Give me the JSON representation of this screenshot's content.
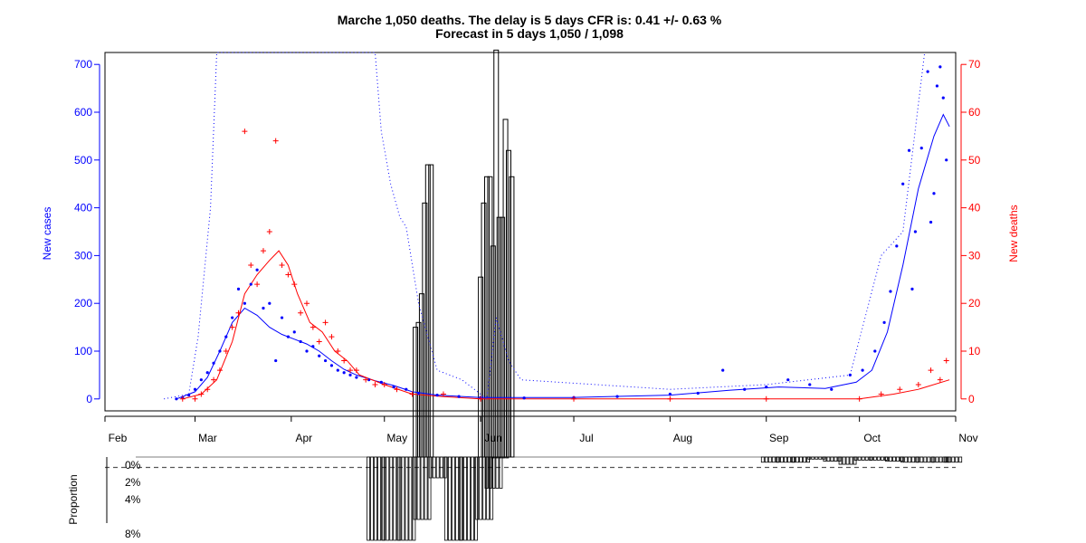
{
  "chart_data": [
    {
      "type": "line",
      "title": "Marche 1,050 deaths. The delay is 5 days CFR is: 0.41 +/- 0.63 %",
      "subtitle": "Forecast in 5 days 1,050 / 1,098",
      "ylabel": "New cases",
      "y2label": "New deaths",
      "x_ticks": [
        "Feb",
        "Mar",
        "Apr",
        "May",
        "Jun",
        "Jul",
        "Aug",
        "Sep",
        "Oct",
        "Nov"
      ],
      "y_ticks": [
        "0",
        "100",
        "200",
        "300",
        "400",
        "500",
        "600",
        "700"
      ],
      "y2_ticks": [
        "0",
        "10",
        "20",
        "30",
        "40",
        "50",
        "60",
        "70"
      ],
      "xlim": [
        "2020-02-01",
        "2020-11-01"
      ],
      "ylim": [
        -25,
        725
      ],
      "y2lim": [
        -2.5,
        72.5
      ],
      "colors": {
        "cases": "#0000ff",
        "deaths": "#ff0000",
        "bars": "#000000"
      },
      "series": [
        {
          "name": "New cases",
          "axis": "left",
          "color": "#0000ff",
          "points": [
            [
              "2020-02-24",
              0
            ],
            [
              "2020-02-26",
              3
            ],
            [
              "2020-02-28",
              8
            ],
            [
              "2020-03-01",
              20
            ],
            [
              "2020-03-03",
              40
            ],
            [
              "2020-03-05",
              55
            ],
            [
              "2020-03-07",
              75
            ],
            [
              "2020-03-09",
              100
            ],
            [
              "2020-03-11",
              130
            ],
            [
              "2020-03-13",
              170
            ],
            [
              "2020-03-15",
              230
            ],
            [
              "2020-03-17",
              200
            ],
            [
              "2020-03-19",
              240
            ],
            [
              "2020-03-21",
              270
            ],
            [
              "2020-03-23",
              190
            ],
            [
              "2020-03-25",
              200
            ],
            [
              "2020-03-27",
              80
            ],
            [
              "2020-03-29",
              170
            ],
            [
              "2020-03-31",
              130
            ],
            [
              "2020-04-02",
              140
            ],
            [
              "2020-04-04",
              120
            ],
            [
              "2020-04-06",
              100
            ],
            [
              "2020-04-08",
              110
            ],
            [
              "2020-04-10",
              90
            ],
            [
              "2020-04-12",
              80
            ],
            [
              "2020-04-14",
              70
            ],
            [
              "2020-04-16",
              60
            ],
            [
              "2020-04-18",
              55
            ],
            [
              "2020-04-20",
              50
            ],
            [
              "2020-04-22",
              45
            ],
            [
              "2020-04-26",
              40
            ],
            [
              "2020-04-30",
              35
            ],
            [
              "2020-05-04",
              25
            ],
            [
              "2020-05-08",
              20
            ],
            [
              "2020-05-12",
              12
            ],
            [
              "2020-05-18",
              8
            ],
            [
              "2020-05-25",
              5
            ],
            [
              "2020-06-01",
              3
            ],
            [
              "2020-06-15",
              2
            ],
            [
              "2020-07-01",
              3
            ],
            [
              "2020-07-15",
              5
            ],
            [
              "2020-08-01",
              10
            ],
            [
              "2020-08-10",
              12
            ],
            [
              "2020-08-18",
              60
            ],
            [
              "2020-08-25",
              20
            ],
            [
              "2020-09-01",
              25
            ],
            [
              "2020-09-08",
              40
            ],
            [
              "2020-09-15",
              30
            ],
            [
              "2020-09-22",
              20
            ],
            [
              "2020-09-28",
              50
            ],
            [
              "2020-10-02",
              60
            ],
            [
              "2020-10-06",
              100
            ],
            [
              "2020-10-09",
              160
            ],
            [
              "2020-10-11",
              225
            ],
            [
              "2020-10-13",
              320
            ],
            [
              "2020-10-15",
              450
            ],
            [
              "2020-10-17",
              520
            ],
            [
              "2020-10-18",
              230
            ],
            [
              "2020-10-19",
              350
            ],
            [
              "2020-10-21",
              525
            ],
            [
              "2020-10-23",
              685
            ],
            [
              "2020-10-24",
              370
            ],
            [
              "2020-10-25",
              430
            ],
            [
              "2020-10-26",
              655
            ],
            [
              "2020-10-27",
              695
            ],
            [
              "2020-10-28",
              630
            ],
            [
              "2020-10-29",
              500
            ]
          ]
        },
        {
          "name": "New deaths",
          "axis": "right",
          "color": "#ff0000",
          "points": [
            [
              "2020-02-26",
              0
            ],
            [
              "2020-03-01",
              0
            ],
            [
              "2020-03-03",
              1
            ],
            [
              "2020-03-05",
              2
            ],
            [
              "2020-03-07",
              4
            ],
            [
              "2020-03-09",
              6
            ],
            [
              "2020-03-11",
              10
            ],
            [
              "2020-03-13",
              15
            ],
            [
              "2020-03-15",
              18
            ],
            [
              "2020-03-17",
              56
            ],
            [
              "2020-03-19",
              28
            ],
            [
              "2020-03-21",
              24
            ],
            [
              "2020-03-23",
              31
            ],
            [
              "2020-03-25",
              35
            ],
            [
              "2020-03-27",
              54
            ],
            [
              "2020-03-29",
              28
            ],
            [
              "2020-03-31",
              26
            ],
            [
              "2020-04-02",
              24
            ],
            [
              "2020-04-04",
              18
            ],
            [
              "2020-04-06",
              20
            ],
            [
              "2020-04-08",
              15
            ],
            [
              "2020-04-10",
              12
            ],
            [
              "2020-04-12",
              16
            ],
            [
              "2020-04-14",
              13
            ],
            [
              "2020-04-16",
              10
            ],
            [
              "2020-04-18",
              8
            ],
            [
              "2020-04-20",
              6
            ],
            [
              "2020-04-22",
              6
            ],
            [
              "2020-04-25",
              4
            ],
            [
              "2020-04-28",
              3
            ],
            [
              "2020-05-01",
              3
            ],
            [
              "2020-05-05",
              2
            ],
            [
              "2020-05-10",
              1
            ],
            [
              "2020-05-20",
              1
            ],
            [
              "2020-06-01",
              0
            ],
            [
              "2020-07-01",
              0
            ],
            [
              "2020-08-01",
              0
            ],
            [
              "2020-09-01",
              0
            ],
            [
              "2020-10-01",
              0
            ],
            [
              "2020-10-08",
              1
            ],
            [
              "2020-10-14",
              2
            ],
            [
              "2020-10-20",
              3
            ],
            [
              "2020-10-24",
              6
            ],
            [
              "2020-10-27",
              4
            ],
            [
              "2020-10-29",
              8
            ]
          ]
        },
        {
          "name": "New cases smoothed",
          "axis": "left",
          "color": "#0000ff",
          "points": [
            [
              "2020-02-24",
              0
            ],
            [
              "2020-03-01",
              15
            ],
            [
              "2020-03-05",
              45
            ],
            [
              "2020-03-09",
              100
            ],
            [
              "2020-03-13",
              160
            ],
            [
              "2020-03-17",
              190
            ],
            [
              "2020-03-21",
              175
            ],
            [
              "2020-03-25",
              150
            ],
            [
              "2020-03-29",
              135
            ],
            [
              "2020-04-02",
              125
            ],
            [
              "2020-04-06",
              115
            ],
            [
              "2020-04-10",
              100
            ],
            [
              "2020-04-14",
              80
            ],
            [
              "2020-04-18",
              62
            ],
            [
              "2020-04-22",
              50
            ],
            [
              "2020-04-28",
              38
            ],
            [
              "2020-05-04",
              28
            ],
            [
              "2020-05-10",
              15
            ],
            [
              "2020-05-18",
              8
            ],
            [
              "2020-06-01",
              3
            ],
            [
              "2020-07-01",
              3
            ],
            [
              "2020-08-01",
              8
            ],
            [
              "2020-08-20",
              18
            ],
            [
              "2020-09-05",
              25
            ],
            [
              "2020-09-20",
              22
            ],
            [
              "2020-09-30",
              35
            ],
            [
              "2020-10-05",
              60
            ],
            [
              "2020-10-10",
              140
            ],
            [
              "2020-10-15",
              280
            ],
            [
              "2020-10-20",
              440
            ],
            [
              "2020-10-25",
              550
            ],
            [
              "2020-10-28",
              595
            ],
            [
              "2020-10-30",
              570
            ]
          ]
        },
        {
          "name": "New deaths smoothed",
          "axis": "right",
          "color": "#ff0000",
          "points": [
            [
              "2020-02-26",
              0
            ],
            [
              "2020-03-03",
              1
            ],
            [
              "2020-03-08",
              4
            ],
            [
              "2020-03-13",
              12
            ],
            [
              "2020-03-17",
              22
            ],
            [
              "2020-03-21",
              26
            ],
            [
              "2020-03-25",
              29
            ],
            [
              "2020-03-28",
              31
            ],
            [
              "2020-03-31",
              28
            ],
            [
              "2020-04-03",
              22
            ],
            [
              "2020-04-07",
              16
            ],
            [
              "2020-04-11",
              14
            ],
            [
              "2020-04-15",
              10
            ],
            [
              "2020-04-19",
              8
            ],
            [
              "2020-04-23",
              5
            ],
            [
              "2020-05-01",
              3
            ],
            [
              "2020-05-10",
              1
            ],
            [
              "2020-05-20",
              0.5
            ],
            [
              "2020-06-01",
              0
            ],
            [
              "2020-10-01",
              0
            ],
            [
              "2020-10-12",
              1
            ],
            [
              "2020-10-20",
              2
            ],
            [
              "2020-10-30",
              4
            ]
          ]
        },
        {
          "name": "Forecast",
          "axis": "left",
          "color": "#0000ff",
          "style": "dotted",
          "points": [
            [
              "2020-02-20",
              0
            ],
            [
              "2020-02-28",
              10
            ],
            [
              "2020-03-02",
              130
            ],
            [
              "2020-03-06",
              400
            ],
            [
              "2020-03-08",
              730
            ],
            [
              "2020-04-28",
              730
            ],
            [
              "2020-04-30",
              560
            ],
            [
              "2020-05-03",
              450
            ],
            [
              "2020-05-06",
              380
            ],
            [
              "2020-05-08",
              360
            ],
            [
              "2020-05-12",
              200
            ],
            [
              "2020-05-18",
              60
            ],
            [
              "2020-05-26",
              40
            ],
            [
              "2020-06-03",
              0
            ],
            [
              "2020-06-06",
              170
            ],
            [
              "2020-06-10",
              80
            ],
            [
              "2020-06-14",
              40
            ],
            [
              "2020-08-01",
              20
            ],
            [
              "2020-09-01",
              30
            ],
            [
              "2020-09-28",
              50
            ],
            [
              "2020-10-08",
              300
            ],
            [
              "2020-10-15",
              350
            ],
            [
              "2020-10-22",
              730
            ]
          ]
        }
      ],
      "bars": {
        "name": "CFR",
        "color": "#000000",
        "values": [
          [
            "2020-05-11",
            150
          ],
          [
            "2020-05-12",
            160
          ],
          [
            "2020-05-13",
            220
          ],
          [
            "2020-05-14",
            410
          ],
          [
            "2020-05-15",
            490
          ],
          [
            "2020-05-16",
            490
          ],
          [
            "2020-06-01",
            255
          ],
          [
            "2020-06-02",
            410
          ],
          [
            "2020-06-03",
            465
          ],
          [
            "2020-06-04",
            465
          ],
          [
            "2020-06-05",
            320
          ],
          [
            "2020-06-06",
            730
          ],
          [
            "2020-06-07",
            380
          ],
          [
            "2020-06-08",
            380
          ],
          [
            "2020-06-09",
            585
          ],
          [
            "2020-06-10",
            520
          ],
          [
            "2020-06-11",
            465
          ]
        ]
      }
    },
    {
      "type": "bar",
      "ylabel": "Proportion",
      "y_ticks": [
        "0%",
        "2%",
        "4%",
        "8%"
      ],
      "reference_line": 1,
      "values": [
        [
          "2020-04-26",
          8
        ],
        [
          "2020-05-01",
          8
        ],
        [
          "2020-05-06",
          8
        ],
        [
          "2020-05-11",
          6
        ],
        [
          "2020-05-16",
          2
        ],
        [
          "2020-05-21",
          8
        ],
        [
          "2020-05-26",
          8
        ],
        [
          "2020-05-31",
          6
        ],
        [
          "2020-06-03",
          3
        ],
        [
          "2020-06-05",
          0
        ],
        [
          "2020-08-31",
          0.5
        ],
        [
          "2020-09-05",
          0.5
        ],
        [
          "2020-09-10",
          0.5
        ],
        [
          "2020-09-15",
          0.2
        ],
        [
          "2020-09-20",
          0.4
        ],
        [
          "2020-09-25",
          0.7
        ],
        [
          "2020-09-30",
          0.3
        ],
        [
          "2020-10-05",
          0.3
        ],
        [
          "2020-10-10",
          0.4
        ],
        [
          "2020-10-15",
          0.5
        ],
        [
          "2020-10-20",
          0.5
        ],
        [
          "2020-10-25",
          0.5
        ],
        [
          "2020-10-29",
          0.5
        ]
      ]
    }
  ]
}
